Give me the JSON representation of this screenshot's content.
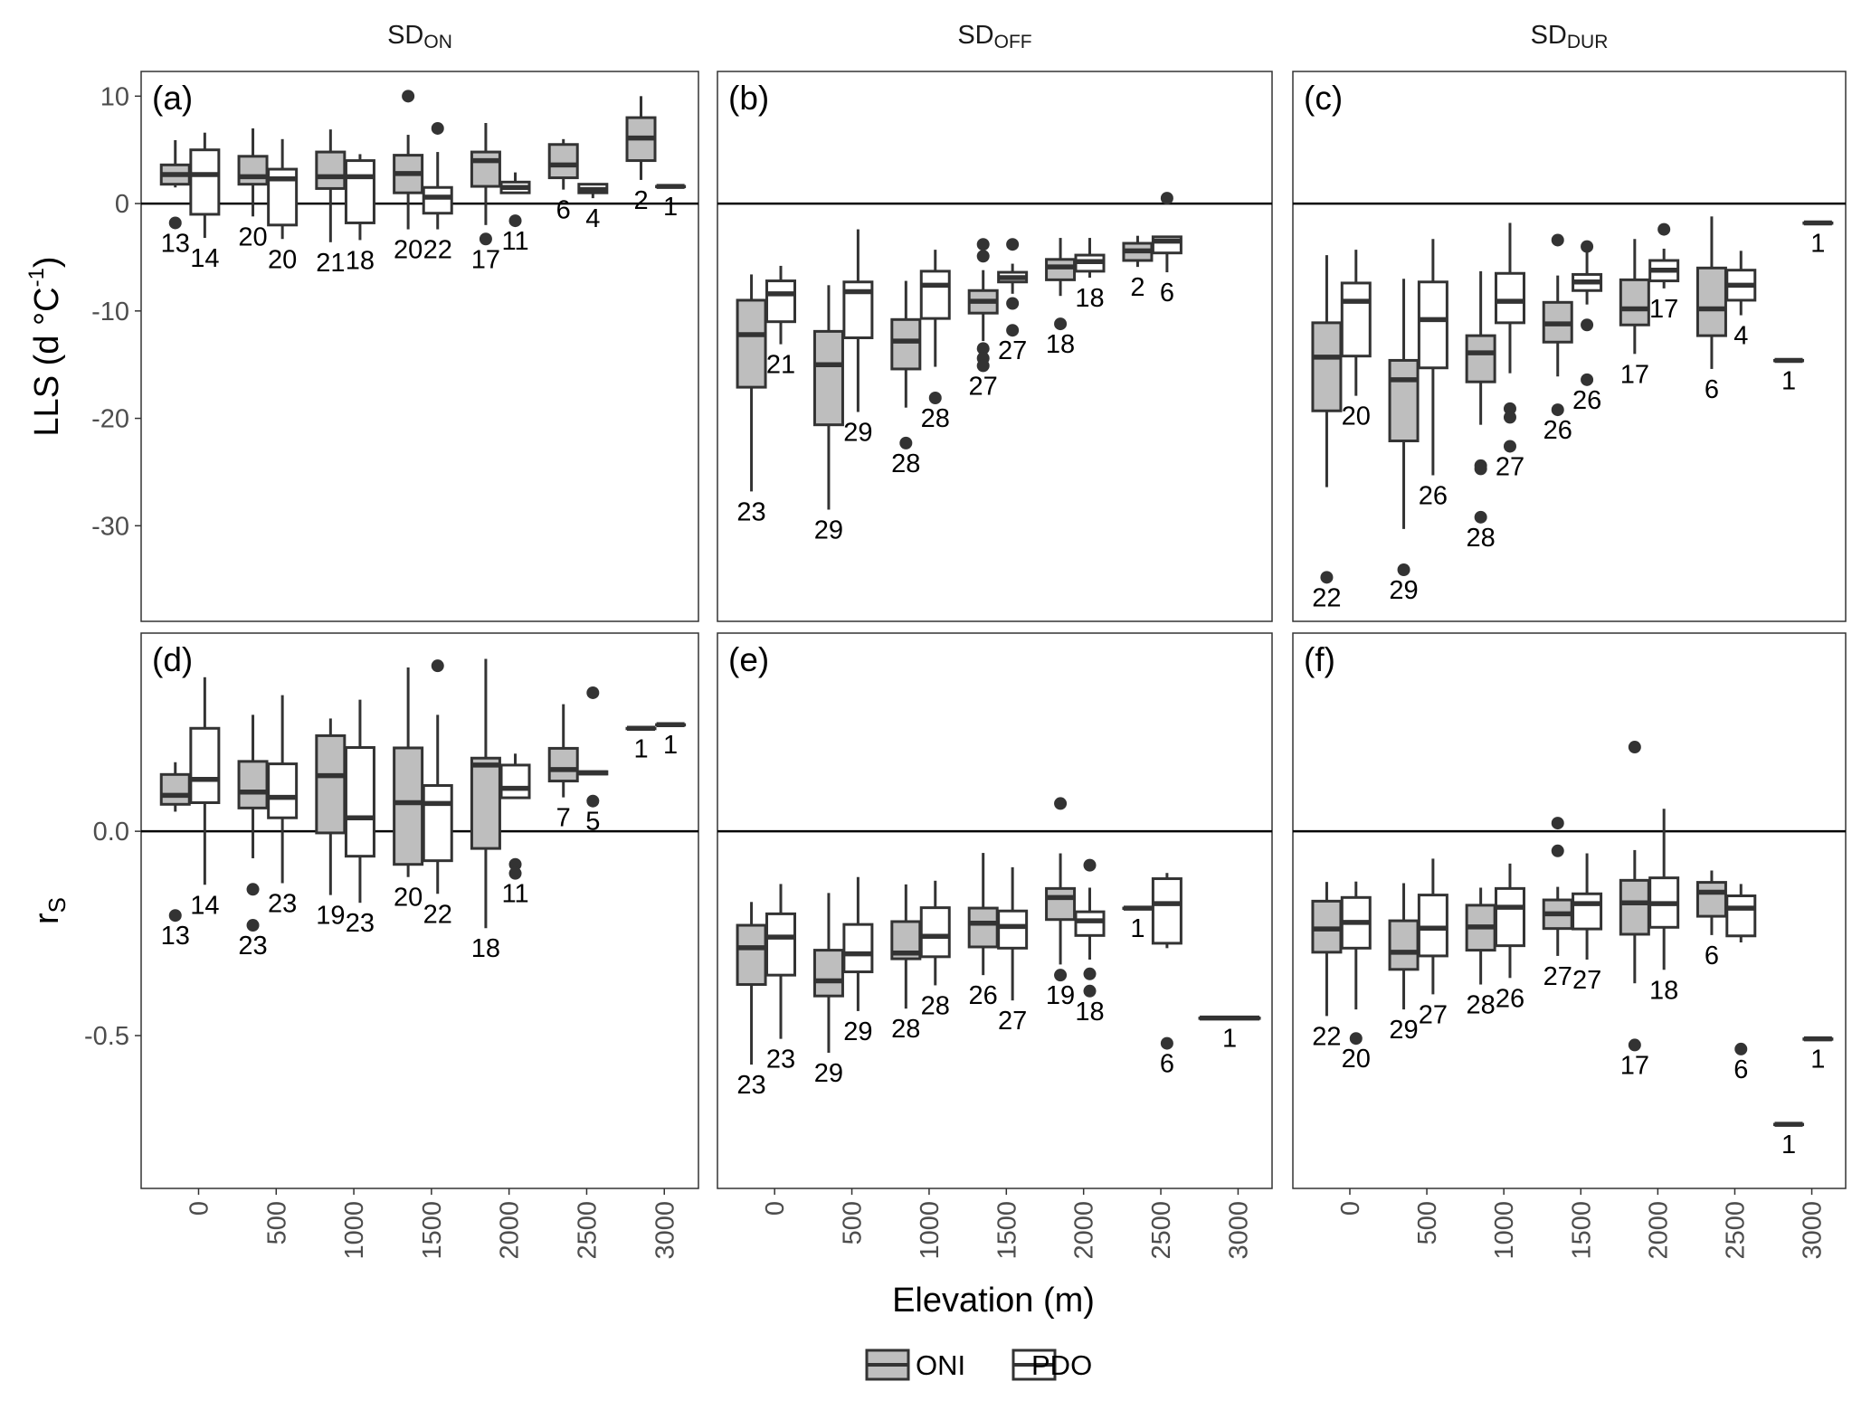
{
  "chart_data": {
    "type": "box",
    "strips": [
      {
        "main": "SD",
        "sub": "ON"
      },
      {
        "main": "SD",
        "sub": "OFF"
      },
      {
        "main": "SD",
        "sub": "DUR"
      }
    ],
    "rows": [
      {
        "ylabel_main": "LLS (d °C",
        "ylabel_sup": "-1",
        "ylabel_end": ")",
        "ylim": [
          -38.9,
          12.3
        ],
        "yticks": [
          10,
          0,
          -10,
          -20,
          -30
        ],
        "ytick_labels": [
          "10",
          "0",
          "-10",
          "-20",
          "-30"
        ],
        "reference_line": 0
      },
      {
        "ylabel_main": "r",
        "ylabel_sub": "S",
        "ylim": [
          -0.874,
          0.485
        ],
        "yticks": [
          0,
          -0.5
        ],
        "ytick_labels": [
          "0.0",
          "-0.5"
        ],
        "reference_line": 0
      }
    ],
    "xlabel": "Elevation (m)",
    "xlim": [
      -370,
      3220
    ],
    "xticks": [
      0,
      500,
      1000,
      1500,
      2000,
      2500,
      3000
    ],
    "xtick_labels": [
      "0",
      "500",
      "1000",
      "1500",
      "2000",
      "2500",
      "3000"
    ],
    "legend": {
      "position": "bottom",
      "items": [
        {
          "label": "ONI",
          "fill": "#bebebe"
        },
        {
          "label": "PDO",
          "fill": "#ffffff"
        }
      ]
    },
    "colors": {
      "box_stroke": "#333333",
      "oni_fill": "#bebebe",
      "pdo_fill": "#ffffff",
      "axis_text": "#4d4d4d",
      "panel_border": "#333333"
    },
    "box_fields": [
      "elevation",
      "series",
      "n",
      "lower_whisker",
      "q1",
      "median",
      "q3",
      "upper_whisker",
      "outliers"
    ],
    "panels": [
      {
        "tag": "(a)",
        "row": 0,
        "col": 0,
        "boxes": [
          [
            0,
            "ONI",
            13,
            1.5,
            1.8,
            2.7,
            3.6,
            5.9,
            [
              -1.8
            ]
          ],
          [
            0,
            "PDO",
            14,
            -3.2,
            -1.0,
            2.7,
            5.0,
            6.6,
            []
          ],
          [
            500,
            "ONI",
            20,
            -1.2,
            1.8,
            2.5,
            4.4,
            7.0,
            []
          ],
          [
            500,
            "PDO",
            20,
            -3.3,
            -2.0,
            2.3,
            3.2,
            6.0,
            []
          ],
          [
            1000,
            "ONI",
            21,
            -3.6,
            1.4,
            2.5,
            4.8,
            6.9,
            []
          ],
          [
            1000,
            "PDO",
            18,
            -3.4,
            -1.8,
            2.5,
            4.0,
            4.6,
            []
          ],
          [
            1500,
            "ONI",
            20,
            -2.4,
            1.0,
            2.8,
            4.5,
            6.4,
            [
              10
            ]
          ],
          [
            1500,
            "PDO",
            22,
            -2.4,
            -0.9,
            0.6,
            1.5,
            4.8,
            [
              7
            ]
          ],
          [
            2000,
            "ONI",
            17,
            -2.0,
            1.6,
            4.0,
            4.8,
            7.5,
            [
              -3.3
            ]
          ],
          [
            2000,
            "PDO",
            11,
            1.0,
            1.0,
            1.5,
            2.0,
            2.9,
            [
              -1.6
            ]
          ],
          [
            2500,
            "ONI",
            6,
            1.3,
            2.4,
            3.6,
            5.5,
            6.0,
            []
          ],
          [
            2500,
            "PDO",
            4,
            0.5,
            1.0,
            1.3,
            1.8,
            1.9,
            []
          ],
          [
            3000,
            "ONI",
            2,
            2.2,
            4.0,
            6.1,
            8.0,
            10.0,
            []
          ],
          [
            3000,
            "PDO",
            1,
            1.6,
            1.6,
            1.6,
            1.6,
            1.6,
            []
          ]
        ]
      },
      {
        "tag": "(b)",
        "row": 0,
        "col": 1,
        "boxes": [
          [
            0,
            "ONI",
            23,
            -26.8,
            -17.1,
            -12.2,
            -9.0,
            -6.6,
            []
          ],
          [
            0,
            "PDO",
            21,
            -13.1,
            -11.0,
            -8.4,
            -7.2,
            -5.8,
            []
          ],
          [
            500,
            "ONI",
            29,
            -28.5,
            -20.6,
            -15.0,
            -11.9,
            -7.6,
            []
          ],
          [
            500,
            "PDO",
            29,
            -19.4,
            -12.5,
            -8.2,
            -7.3,
            -2.4,
            []
          ],
          [
            1000,
            "ONI",
            28,
            -19.0,
            -15.4,
            -12.8,
            -10.8,
            -7.2,
            [
              -22.3
            ]
          ],
          [
            1000,
            "PDO",
            28,
            -15.2,
            -10.7,
            -7.6,
            -6.3,
            -4.3,
            [
              -18.1
            ]
          ],
          [
            1500,
            "ONI",
            27,
            -12.8,
            -10.2,
            -9.1,
            -8.1,
            -6.2,
            [
              -3.8,
              -4.9,
              -13.5,
              -14.4,
              -15.1
            ]
          ],
          [
            1500,
            "PDO",
            27,
            -8.4,
            -7.3,
            -6.9,
            -6.4,
            -5.6,
            [
              -3.8,
              -9.3,
              -11.8
            ]
          ],
          [
            2000,
            "ONI",
            18,
            -8.6,
            -7.1,
            -5.9,
            -5.2,
            -3.2,
            [
              -11.2
            ]
          ],
          [
            2000,
            "PDO",
            18,
            -6.9,
            -6.3,
            -5.4,
            -4.8,
            -3.2,
            []
          ],
          [
            2500,
            "ONI",
            2,
            -5.9,
            -5.3,
            -4.4,
            -3.7,
            -3.0,
            []
          ],
          [
            2500,
            "PDO",
            6,
            -6.4,
            -4.6,
            -3.5,
            -3.1,
            -3.0,
            [
              0.5
            ]
          ]
        ]
      },
      {
        "tag": "(c)",
        "row": 0,
        "col": 2,
        "boxes": [
          [
            0,
            "ONI",
            22,
            -26.4,
            -19.3,
            -14.3,
            -11.1,
            -4.8,
            [
              -34.8
            ]
          ],
          [
            0,
            "PDO",
            20,
            -17.9,
            -14.2,
            -9.1,
            -7.4,
            -4.3,
            []
          ],
          [
            500,
            "ONI",
            29,
            -30.3,
            -22.1,
            -16.4,
            -14.6,
            -7.0,
            [
              -34.1
            ]
          ],
          [
            500,
            "PDO",
            26,
            -25.3,
            -15.3,
            -10.8,
            -7.3,
            -3.3,
            []
          ],
          [
            1000,
            "ONI",
            28,
            -20.6,
            -16.6,
            -13.9,
            -12.3,
            -6.3,
            [
              -24.4,
              -24.7,
              -29.2
            ]
          ],
          [
            1000,
            "PDO",
            27,
            -15.8,
            -11.1,
            -9.1,
            -6.5,
            -1.8,
            [
              -19.1,
              -19.9,
              -22.6
            ]
          ],
          [
            1500,
            "ONI",
            26,
            -16.1,
            -12.9,
            -11.2,
            -9.2,
            -6.7,
            [
              -3.4,
              -19.2
            ]
          ],
          [
            1500,
            "PDO",
            26,
            -9.4,
            -8.1,
            -7.3,
            -6.6,
            -4.4,
            [
              -4.0,
              -11.3,
              -16.4
            ]
          ],
          [
            2000,
            "ONI",
            17,
            -14.0,
            -11.3,
            -9.8,
            -7.1,
            -3.3,
            []
          ],
          [
            2000,
            "PDO",
            17,
            -7.9,
            -7.2,
            -6.2,
            -5.3,
            -4.2,
            [
              -2.4
            ]
          ],
          [
            2500,
            "ONI",
            6,
            -15.4,
            -12.3,
            -9.8,
            -6.0,
            -1.2,
            []
          ],
          [
            2500,
            "PDO",
            4,
            -10.4,
            -9.0,
            -7.6,
            -6.2,
            -4.4,
            []
          ],
          [
            3000,
            "ONI",
            1,
            -14.6,
            -14.6,
            -14.6,
            -14.6,
            -14.6,
            []
          ],
          [
            3000,
            "PDO",
            1,
            -1.8,
            -1.8,
            -1.8,
            -1.8,
            -1.8,
            []
          ]
        ]
      },
      {
        "tag": "(d)",
        "row": 1,
        "col": 0,
        "boxes": [
          [
            0,
            "ONI",
            13,
            0.048,
            0.066,
            0.088,
            0.139,
            0.169,
            [
              -0.206
            ]
          ],
          [
            0,
            "PDO",
            14,
            -0.131,
            0.07,
            0.127,
            0.252,
            0.377,
            []
          ],
          [
            500,
            "ONI",
            23,
            -0.066,
            0.057,
            0.096,
            0.171,
            0.285,
            [
              -0.142,
              -0.23
            ]
          ],
          [
            500,
            "PDO",
            23,
            -0.127,
            0.033,
            0.083,
            0.165,
            0.333,
            []
          ],
          [
            1000,
            "ONI",
            19,
            -0.156,
            -0.004,
            0.136,
            0.234,
            0.276,
            []
          ],
          [
            1000,
            "PDO",
            23,
            -0.175,
            -0.061,
            0.033,
            0.205,
            0.322,
            []
          ],
          [
            1500,
            "ONI",
            20,
            -0.112,
            -0.081,
            0.07,
            0.204,
            0.401,
            []
          ],
          [
            1500,
            "PDO",
            22,
            -0.153,
            -0.072,
            0.068,
            0.112,
            0.285,
            [
              0.405
            ]
          ],
          [
            2000,
            "ONI",
            18,
            -0.237,
            -0.042,
            0.162,
            0.179,
            0.422,
            []
          ],
          [
            2000,
            "PDO",
            11,
            0.082,
            0.082,
            0.105,
            0.162,
            0.19,
            [
              -0.081,
              -0.103
            ]
          ],
          [
            2500,
            "ONI",
            7,
            0.083,
            0.123,
            0.151,
            0.203,
            0.311,
            []
          ],
          [
            2500,
            "PDO",
            5,
            0.14,
            0.14,
            0.143,
            0.146,
            0.146,
            [
              0.339,
              0.074
            ]
          ],
          [
            3000,
            "ONI",
            1,
            0.252,
            0.252,
            0.252,
            0.252,
            0.252,
            []
          ],
          [
            3000,
            "PDO",
            1,
            0.261,
            0.261,
            0.261,
            0.261,
            0.261,
            []
          ]
        ]
      },
      {
        "tag": "(e)",
        "row": 1,
        "col": 1,
        "boxes": [
          [
            0,
            "ONI",
            23,
            -0.571,
            -0.375,
            -0.285,
            -0.23,
            -0.173,
            []
          ],
          [
            0,
            "PDO",
            23,
            -0.508,
            -0.352,
            -0.259,
            -0.202,
            -0.129,
            []
          ],
          [
            500,
            "ONI",
            29,
            -0.542,
            -0.403,
            -0.366,
            -0.291,
            -0.151,
            []
          ],
          [
            500,
            "PDO",
            29,
            -0.44,
            -0.344,
            -0.3,
            -0.228,
            -0.112,
            []
          ],
          [
            1000,
            "ONI",
            28,
            -0.434,
            -0.312,
            -0.298,
            -0.221,
            -0.13,
            []
          ],
          [
            1000,
            "PDO",
            28,
            -0.377,
            -0.307,
            -0.257,
            -0.187,
            -0.121,
            []
          ],
          [
            1500,
            "ONI",
            26,
            -0.352,
            -0.283,
            -0.225,
            -0.188,
            -0.053,
            []
          ],
          [
            1500,
            "PDO",
            27,
            -0.414,
            -0.286,
            -0.233,
            -0.195,
            -0.088,
            []
          ],
          [
            2000,
            "ONI",
            19,
            -0.326,
            -0.216,
            -0.162,
            -0.14,
            -0.054,
            [
              0.068,
              -0.352
            ]
          ],
          [
            2000,
            "PDO",
            18,
            -0.314,
            -0.255,
            -0.219,
            -0.197,
            -0.138,
            [
              -0.083,
              -0.349,
              -0.391
            ]
          ],
          [
            2500,
            "ONI",
            1,
            -0.188,
            -0.188,
            -0.188,
            -0.188,
            -0.188,
            []
          ],
          [
            2500,
            "PDO",
            6,
            -0.286,
            -0.274,
            -0.177,
            -0.116,
            -0.102,
            [
              -0.519
            ]
          ],
          [
            3000,
            "ONI",
            1,
            -0.457,
            -0.457,
            -0.457,
            -0.457,
            -0.457,
            []
          ]
        ]
      },
      {
        "tag": "(f)",
        "row": 1,
        "col": 2,
        "boxes": [
          [
            0,
            "ONI",
            22,
            -0.452,
            -0.296,
            -0.239,
            -0.171,
            -0.124,
            []
          ],
          [
            0,
            "PDO",
            20,
            -0.436,
            -0.286,
            -0.223,
            -0.162,
            -0.123,
            [
              -0.507
            ]
          ],
          [
            500,
            "ONI",
            29,
            -0.436,
            -0.338,
            -0.296,
            -0.219,
            -0.127,
            []
          ],
          [
            500,
            "PDO",
            27,
            -0.399,
            -0.305,
            -0.237,
            -0.156,
            -0.067,
            []
          ],
          [
            1000,
            "ONI",
            28,
            -0.375,
            -0.291,
            -0.234,
            -0.181,
            -0.138,
            []
          ],
          [
            1000,
            "PDO",
            26,
            -0.359,
            -0.28,
            -0.186,
            -0.14,
            -0.079,
            []
          ],
          [
            1500,
            "ONI",
            27,
            -0.305,
            -0.238,
            -0.202,
            -0.168,
            -0.136,
            [
              0.02,
              -0.048
            ]
          ],
          [
            1500,
            "PDO",
            27,
            -0.314,
            -0.239,
            -0.177,
            -0.153,
            -0.054,
            []
          ],
          [
            2000,
            "ONI",
            17,
            -0.372,
            -0.252,
            -0.175,
            -0.12,
            -0.046,
            [
              0.206,
              -0.523
            ]
          ],
          [
            2000,
            "PDO",
            18,
            -0.339,
            -0.235,
            -0.177,
            -0.114,
            0.055,
            []
          ],
          [
            2500,
            "ONI",
            6,
            -0.254,
            -0.208,
            -0.149,
            -0.125,
            -0.096,
            []
          ],
          [
            2500,
            "PDO",
            6,
            -0.272,
            -0.256,
            -0.188,
            -0.158,
            -0.129,
            [
              -0.533
            ]
          ],
          [
            3000,
            "ONI",
            1,
            -0.717,
            -0.717,
            -0.717,
            -0.717,
            -0.717,
            []
          ],
          [
            3000,
            "PDO",
            1,
            -0.508,
            -0.508,
            -0.508,
            -0.508,
            -0.508,
            []
          ]
        ]
      }
    ]
  }
}
